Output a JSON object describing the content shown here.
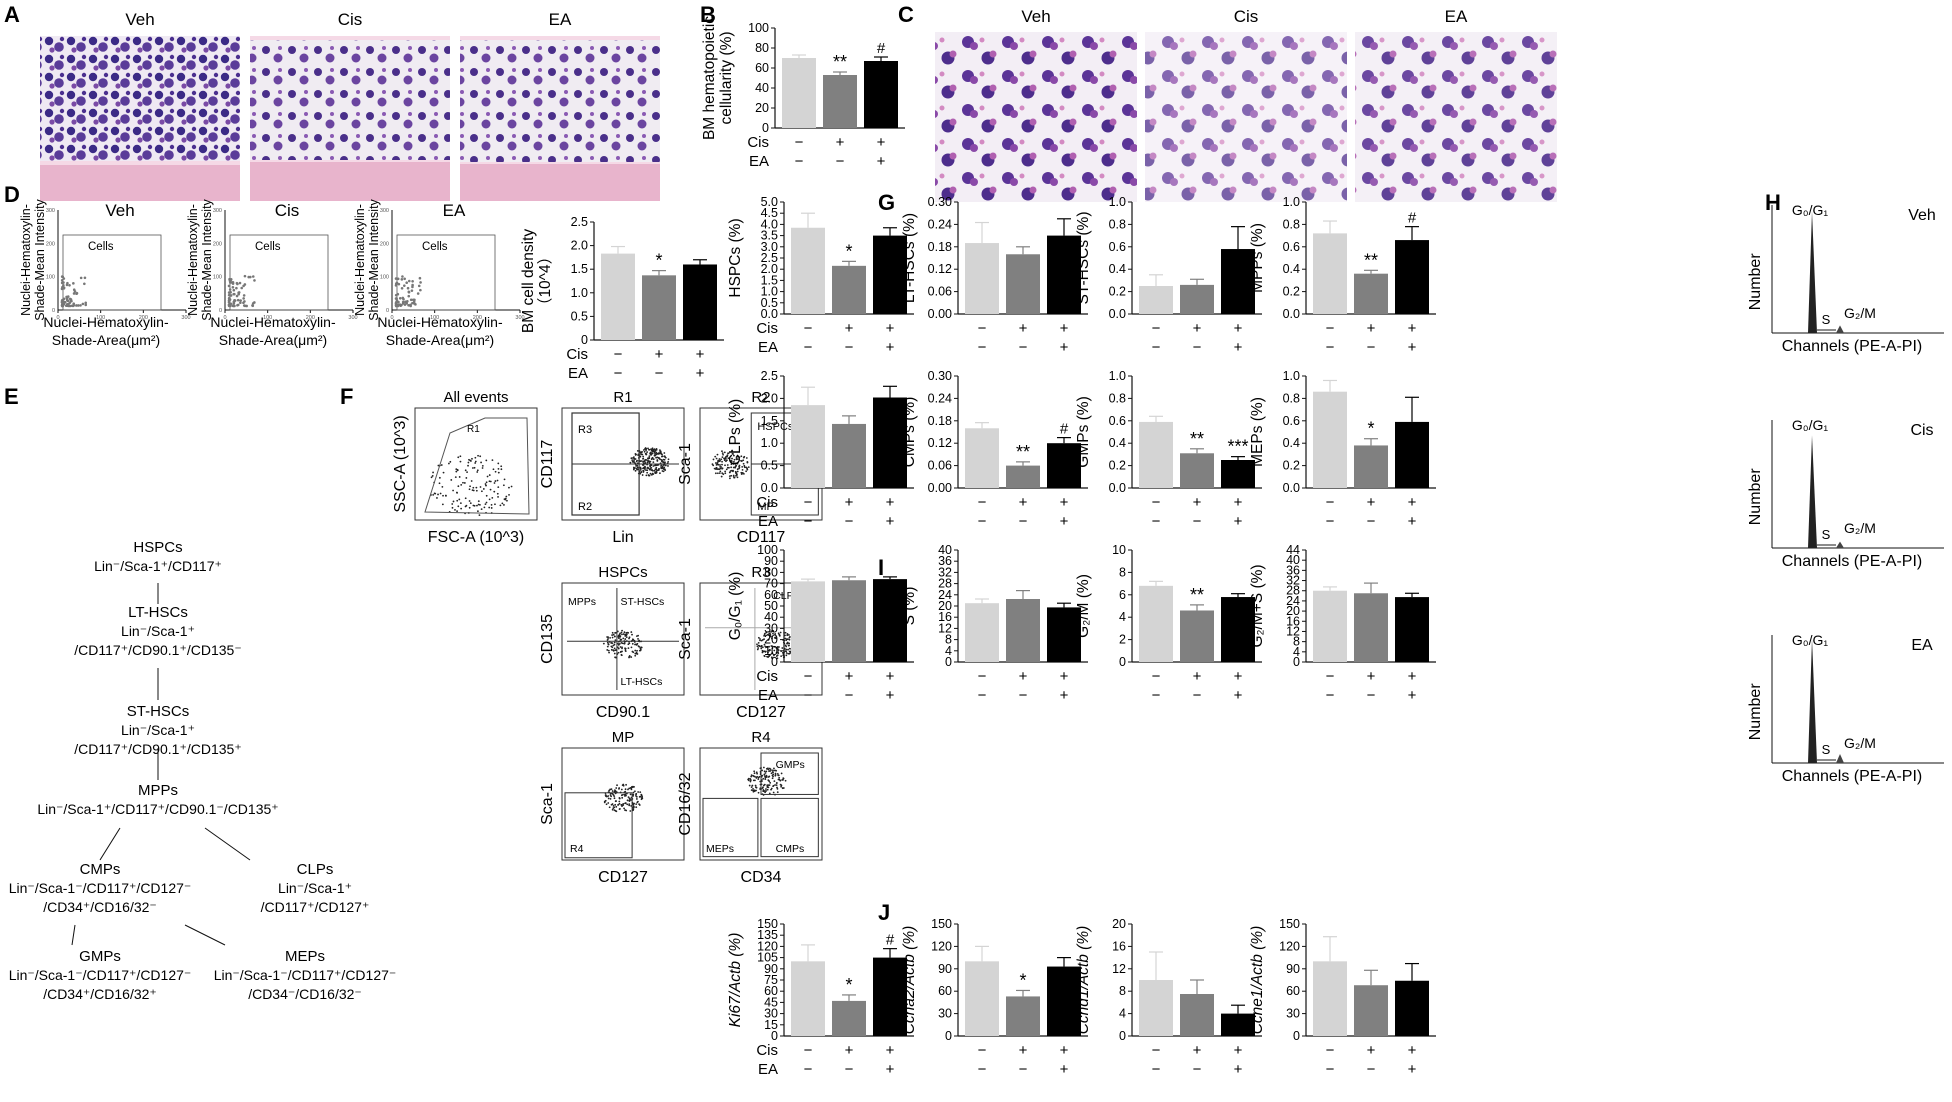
{
  "figure": {
    "panel_letters": [
      "A",
      "B",
      "C",
      "D",
      "E",
      "F",
      "G",
      "H",
      "I",
      "J"
    ],
    "groups": [
      "Veh",
      "Cis",
      "EA"
    ],
    "cis_label": "Cis",
    "ea_label": "EA",
    "cis_signs": [
      "−",
      "+",
      "+"
    ],
    "ea_signs": [
      "−",
      "−",
      "+"
    ],
    "colors": {
      "veh": "#d4d4d4",
      "cis": "#808080",
      "ea": "#000000",
      "tissue_purple": "#4a2f8a",
      "tissue_pink": "#d998b8"
    }
  },
  "panelA": {
    "labels": [
      "Veh",
      "Cis",
      "EA"
    ]
  },
  "panelC": {
    "labels": [
      "Veh",
      "Cis",
      "EA"
    ]
  },
  "panelD": {
    "plots": [
      {
        "title": "Veh",
        "gate": "Cells"
      },
      {
        "title": "Cis",
        "gate": "Cells"
      },
      {
        "title": "EA",
        "gate": "Cells"
      }
    ],
    "ylabel_line1": "Nuclei-Hematoxylin-",
    "ylabel_line2": "Shade-Mean Intensity",
    "xlabel_line1": "Nuclei-Hematoxylin-",
    "xlabel_line2": "Shade-Area(μm²)",
    "x_ticks": [
      "0",
      "100",
      "200",
      "300"
    ],
    "y_ticks": [
      "0",
      "100",
      "200",
      "300"
    ]
  },
  "panelE": {
    "nodes": [
      {
        "name": "HSPCs",
        "lines": [
          "Lin⁻/Sca-1⁺/CD117⁺"
        ]
      },
      {
        "name": "LT-HSCs",
        "lines": [
          "Lin⁻/Sca-1⁺",
          "/CD117⁺/CD90.1⁺/CD135⁻"
        ]
      },
      {
        "name": "ST-HSCs",
        "lines": [
          "Lin⁻/Sca-1⁺",
          "/CD117⁺/CD90.1⁺/CD135⁺"
        ]
      },
      {
        "name": "MPPs",
        "lines": [
          "Lin⁻/Sca-1⁺/CD117⁺/CD90.1⁻/CD135⁺"
        ]
      },
      {
        "name": "CMPs",
        "lines": [
          "Lin⁻/Sca-1⁻/CD117⁺/CD127⁻",
          "/CD34⁺/CD16/32⁻"
        ]
      },
      {
        "name": "CLPs",
        "lines": [
          "Lin⁻/Sca-1⁺",
          "/CD117⁺/CD127⁺"
        ]
      },
      {
        "name": "GMPs",
        "lines": [
          "Lin⁻/Sca-1⁻/CD117⁺/CD127⁻",
          "/CD34⁺/CD16/32⁺"
        ]
      },
      {
        "name": "MEPs",
        "lines": [
          "Lin⁻/Sca-1⁻/CD117⁺/CD127⁻",
          "/CD34⁻/CD16/32⁻"
        ]
      }
    ]
  },
  "panelF": {
    "plots": [
      {
        "title": "All events",
        "xlabel": "FSC-A (10^3)",
        "ylabel": "SSC-A (10^3)",
        "gates": [
          "R1"
        ]
      },
      {
        "title": "R1",
        "xlabel": "Lin",
        "ylabel": "CD117",
        "gates": [
          "R3",
          "R2"
        ]
      },
      {
        "title": "R2",
        "xlabel": "CD117",
        "ylabel": "Sca-1",
        "gates": [
          "HSPCs",
          "MP"
        ]
      },
      {
        "title": "HSPCs",
        "xlabel": "CD90.1",
        "ylabel": "CD135",
        "gates": [
          "MPPs",
          "ST-HSCs",
          "LT-HSCs"
        ]
      },
      {
        "title": "R3",
        "xlabel": "CD127",
        "ylabel": "Sca-1",
        "gates": [
          "CLPs"
        ]
      },
      {
        "title": "MP",
        "xlabel": "CD127",
        "ylabel": "Sca-1",
        "gates": [
          "R4"
        ]
      },
      {
        "title": "R4",
        "xlabel": "CD34",
        "ylabel": "CD16/32",
        "gates": [
          "GMPs",
          "MEPs",
          "CMPs"
        ]
      }
    ]
  },
  "panelH": {
    "xlabel": "Channels (PE-A-PI)",
    "ylabel": "Number",
    "peak_g0g1": "G₀/G₁",
    "peak_s": "S",
    "peak_g2m": "G₂/M",
    "plots": [
      {
        "group": "Veh",
        "g0g1_height": 0.95,
        "g2m_height": 0.06
      },
      {
        "group": "Cis",
        "g0g1_height": 0.88,
        "g2m_height": 0.05
      },
      {
        "group": "EA",
        "g0g1_height": 0.97,
        "g2m_height": 0.07
      }
    ]
  },
  "chart_data": [
    {
      "id": "B",
      "type": "bar",
      "categories": [
        "Veh",
        "Cis",
        "EA"
      ],
      "values": [
        70,
        53,
        67
      ],
      "errors": [
        3,
        3,
        4
      ],
      "ylabel_lines": [
        "BM hematopoietic",
        "cellularity (%)"
      ],
      "ylim": [
        0,
        100
      ],
      "yticks": [
        0,
        20,
        40,
        60,
        80,
        100
      ],
      "tick_labels": [
        "0",
        "20",
        "40",
        "60",
        "80",
        "100"
      ],
      "marks": [
        "",
        "**",
        "#"
      ],
      "italic_ylabel": false
    },
    {
      "id": "D",
      "type": "bar",
      "categories": [
        "Veh",
        "Cis",
        "EA"
      ],
      "values": [
        1.83,
        1.37,
        1.6
      ],
      "errors": [
        0.15,
        0.1,
        0.1
      ],
      "ylabel_lines": [
        "BM cell density",
        "（10^4）"
      ],
      "ylim": [
        0,
        2.5
      ],
      "yticks": [
        0,
        0.5,
        1,
        1.5,
        2,
        2.5
      ],
      "tick_labels": [
        "0",
        "0.5",
        "1.0",
        "1.5",
        "2.0",
        "2.5"
      ],
      "marks": [
        "",
        "*",
        ""
      ],
      "italic_ylabel": false
    },
    {
      "id": "G1",
      "type": "bar",
      "categories": [
        "Veh",
        "Cis",
        "EA"
      ],
      "values": [
        3.85,
        2.15,
        3.5
      ],
      "errors": [
        0.65,
        0.2,
        0.35
      ],
      "ylabel_lines": [
        "HSPCs (%)"
      ],
      "ylim": [
        0,
        5
      ],
      "yticks": [
        0,
        0.5,
        1,
        1.5,
        2,
        2.5,
        3,
        3.5,
        4,
        4.5,
        5
      ],
      "tick_labels": [
        "0.0",
        "0.5",
        "1.0",
        "1.5",
        "2.0",
        "2.5",
        "3.0",
        "3.5",
        "4.0",
        "4.5",
        "5.0"
      ],
      "marks": [
        "",
        "*",
        ""
      ],
      "italic_ylabel": false
    },
    {
      "id": "G2",
      "type": "bar",
      "categories": [
        "Veh",
        "Cis",
        "EA"
      ],
      "values": [
        0.19,
        0.16,
        0.21
      ],
      "errors": [
        0.055,
        0.02,
        0.045
      ],
      "ylabel_lines": [
        "LT-HSCs (%)"
      ],
      "ylim": [
        0,
        0.3
      ],
      "yticks": [
        0,
        0.06,
        0.12,
        0.18,
        0.24,
        0.3
      ],
      "tick_labels": [
        "0.00",
        "0.06",
        "0.12",
        "0.18",
        "0.24",
        "0.30"
      ],
      "marks": [
        "",
        "",
        ""
      ],
      "italic_ylabel": false
    },
    {
      "id": "G3",
      "type": "bar",
      "categories": [
        "Veh",
        "Cis",
        "EA"
      ],
      "values": [
        0.25,
        0.26,
        0.58
      ],
      "errors": [
        0.1,
        0.05,
        0.2
      ],
      "ylabel_lines": [
        "ST-HSCs (%)"
      ],
      "ylim": [
        0,
        1
      ],
      "yticks": [
        0,
        0.2,
        0.4,
        0.6,
        0.8,
        1
      ],
      "tick_labels": [
        "0.0",
        "0.2",
        "0.4",
        "0.6",
        "0.8",
        "1.0"
      ],
      "marks": [
        "",
        "",
        ""
      ],
      "italic_ylabel": false
    },
    {
      "id": "G4",
      "type": "bar",
      "categories": [
        "Veh",
        "Cis",
        "EA"
      ],
      "values": [
        0.72,
        0.36,
        0.66
      ],
      "errors": [
        0.11,
        0.03,
        0.12
      ],
      "ylabel_lines": [
        "MPPs (%)"
      ],
      "ylim": [
        0,
        1
      ],
      "yticks": [
        0,
        0.2,
        0.4,
        0.6,
        0.8,
        1
      ],
      "tick_labels": [
        "0.0",
        "0.2",
        "0.4",
        "0.6",
        "0.8",
        "1.0"
      ],
      "marks": [
        "",
        "**",
        "#"
      ],
      "italic_ylabel": false
    },
    {
      "id": "G5",
      "type": "bar",
      "categories": [
        "Veh",
        "Cis",
        "EA"
      ],
      "values": [
        1.85,
        1.43,
        2.02
      ],
      "errors": [
        0.4,
        0.18,
        0.25
      ],
      "ylabel_lines": [
        "CLPs (%)"
      ],
      "ylim": [
        0,
        2.5
      ],
      "yticks": [
        0,
        0.5,
        1,
        1.5,
        2,
        2.5
      ],
      "tick_labels": [
        "0.0",
        "0.5",
        "1.0",
        "1.5",
        "2.0",
        "2.5"
      ],
      "marks": [
        "",
        "",
        ""
      ],
      "italic_ylabel": false
    },
    {
      "id": "G6",
      "type": "bar",
      "categories": [
        "Veh",
        "Cis",
        "EA"
      ],
      "values": [
        0.16,
        0.06,
        0.12
      ],
      "errors": [
        0.015,
        0.01,
        0.015
      ],
      "ylabel_lines": [
        "CMPs (%)"
      ],
      "ylim": [
        0,
        0.3
      ],
      "yticks": [
        0,
        0.06,
        0.12,
        0.18,
        0.24,
        0.3
      ],
      "tick_labels": [
        "0.00",
        "0.06",
        "0.12",
        "0.18",
        "0.24",
        "0.30"
      ],
      "marks": [
        "",
        "**",
        "#"
      ],
      "italic_ylabel": false
    },
    {
      "id": "G7",
      "type": "bar",
      "categories": [
        "Veh",
        "Cis",
        "EA"
      ],
      "values": [
        0.59,
        0.31,
        0.25
      ],
      "errors": [
        0.05,
        0.04,
        0.03
      ],
      "ylabel_lines": [
        "GMPs (%)"
      ],
      "ylim": [
        0,
        1
      ],
      "yticks": [
        0,
        0.2,
        0.4,
        0.6,
        0.8,
        1
      ],
      "tick_labels": [
        "0.0",
        "0.2",
        "0.4",
        "0.6",
        "0.8",
        "1.0"
      ],
      "marks": [
        "",
        "**",
        "***"
      ],
      "italic_ylabel": false
    },
    {
      "id": "G8",
      "type": "bar",
      "categories": [
        "Veh",
        "Cis",
        "EA"
      ],
      "values": [
        0.86,
        0.38,
        0.59
      ],
      "errors": [
        0.1,
        0.06,
        0.22
      ],
      "ylabel_lines": [
        "MEPs (%)"
      ],
      "ylim": [
        0,
        1
      ],
      "yticks": [
        0,
        0.2,
        0.4,
        0.6,
        0.8,
        1
      ],
      "tick_labels": [
        "0.0",
        "0.2",
        "0.4",
        "0.6",
        "0.8",
        "1.0"
      ],
      "marks": [
        "",
        "*",
        ""
      ],
      "italic_ylabel": false
    },
    {
      "id": "I1",
      "type": "bar",
      "categories": [
        "Veh",
        "Cis",
        "EA"
      ],
      "values": [
        72,
        73,
        74
      ],
      "errors": [
        2,
        3,
        2
      ],
      "ylabel_lines": [
        "G₀/G₁ (%)"
      ],
      "ylim": [
        0,
        100
      ],
      "yticks": [
        0,
        10,
        20,
        30,
        40,
        50,
        60,
        70,
        80,
        90,
        100
      ],
      "tick_labels": [
        "0",
        "10",
        "20",
        "30",
        "40",
        "50",
        "60",
        "70",
        "80",
        "90",
        "100"
      ],
      "marks": [
        "",
        "",
        ""
      ],
      "italic_ylabel": false
    },
    {
      "id": "I2",
      "type": "bar",
      "categories": [
        "Veh",
        "Cis",
        "EA"
      ],
      "values": [
        21,
        22.5,
        19.5
      ],
      "errors": [
        1.5,
        3,
        1.5
      ],
      "ylabel_lines": [
        "S (%)"
      ],
      "ylim": [
        0,
        40
      ],
      "yticks": [
        0,
        4,
        8,
        12,
        16,
        20,
        24,
        28,
        32,
        36,
        40
      ],
      "tick_labels": [
        "0",
        "4",
        "8",
        "12",
        "16",
        "20",
        "24",
        "28",
        "32",
        "36",
        "40"
      ],
      "marks": [
        "",
        "",
        ""
      ],
      "italic_ylabel": false
    },
    {
      "id": "I3",
      "type": "bar",
      "categories": [
        "Veh",
        "Cis",
        "EA"
      ],
      "values": [
        6.8,
        4.6,
        5.8
      ],
      "errors": [
        0.4,
        0.5,
        0.3
      ],
      "ylabel_lines": [
        "G₂/M (%)"
      ],
      "ylim": [
        0,
        10
      ],
      "yticks": [
        0,
        2,
        4,
        6,
        8,
        10
      ],
      "tick_labels": [
        "0",
        "2",
        "4",
        "6",
        "8",
        "10"
      ],
      "marks": [
        "",
        "**",
        ""
      ],
      "italic_ylabel": false
    },
    {
      "id": "I4",
      "type": "bar",
      "categories": [
        "Veh",
        "Cis",
        "EA"
      ],
      "values": [
        28,
        27,
        25.5
      ],
      "errors": [
        1.5,
        4,
        1.5
      ],
      "ylabel_lines": [
        "G₂/M+S (%)"
      ],
      "ylim": [
        0,
        44
      ],
      "yticks": [
        0,
        4,
        8,
        12,
        16,
        20,
        24,
        28,
        32,
        36,
        40,
        44
      ],
      "tick_labels": [
        "0",
        "4",
        "8",
        "12",
        "16",
        "20",
        "24",
        "28",
        "32",
        "36",
        "40",
        "44"
      ],
      "marks": [
        "",
        "",
        ""
      ],
      "italic_ylabel": false
    },
    {
      "id": "J1",
      "type": "bar",
      "categories": [
        "Veh",
        "Cis",
        "EA"
      ],
      "values": [
        100,
        47,
        105
      ],
      "errors": [
        22,
        8,
        12
      ],
      "ylabel_lines": [
        "Ki67/Actb (%)"
      ],
      "ylim": [
        0,
        150
      ],
      "yticks": [
        0,
        15,
        30,
        45,
        60,
        75,
        90,
        105,
        120,
        135,
        150
      ],
      "tick_labels": [
        "0",
        "15",
        "30",
        "45",
        "60",
        "75",
        "90",
        "105",
        "120",
        "135",
        "150"
      ],
      "marks": [
        "",
        "*",
        "#"
      ],
      "italic_ylabel": true
    },
    {
      "id": "J2",
      "type": "bar",
      "categories": [
        "Veh",
        "Cis",
        "EA"
      ],
      "values": [
        100,
        53,
        93
      ],
      "errors": [
        20,
        8,
        12
      ],
      "ylabel_lines": [
        "Ccna2/Actb (%)"
      ],
      "ylim": [
        0,
        150
      ],
      "yticks": [
        0,
        30,
        60,
        90,
        120,
        150
      ],
      "tick_labels": [
        "0",
        "30",
        "60",
        "90",
        "120",
        "150"
      ],
      "marks": [
        "",
        "*",
        ""
      ],
      "italic_ylabel": true
    },
    {
      "id": "J3",
      "type": "bar",
      "categories": [
        "Veh",
        "Cis",
        "EA"
      ],
      "values": [
        10,
        7.5,
        4
      ],
      "errors": [
        5,
        2.5,
        1.5
      ],
      "ylabel_lines": [
        "Ccnd1/Actb (%)"
      ],
      "ylim": [
        0,
        20
      ],
      "yticks": [
        0,
        4,
        8,
        12,
        16,
        20
      ],
      "tick_labels": [
        "0",
        "4",
        "8",
        "12",
        "16",
        "20"
      ],
      "marks": [
        "",
        "",
        ""
      ],
      "italic_ylabel": true
    },
    {
      "id": "J4",
      "type": "bar",
      "categories": [
        "Veh",
        "Cis",
        "EA"
      ],
      "values": [
        100,
        68,
        74
      ],
      "errors": [
        33,
        20,
        23
      ],
      "ylabel_lines": [
        "Ccne1/Actb (%)"
      ],
      "ylim": [
        0,
        150
      ],
      "yticks": [
        0,
        30,
        60,
        90,
        120,
        150
      ],
      "tick_labels": [
        "0",
        "30",
        "60",
        "90",
        "120",
        "150"
      ],
      "marks": [
        "",
        "",
        ""
      ],
      "italic_ylabel": true
    }
  ]
}
